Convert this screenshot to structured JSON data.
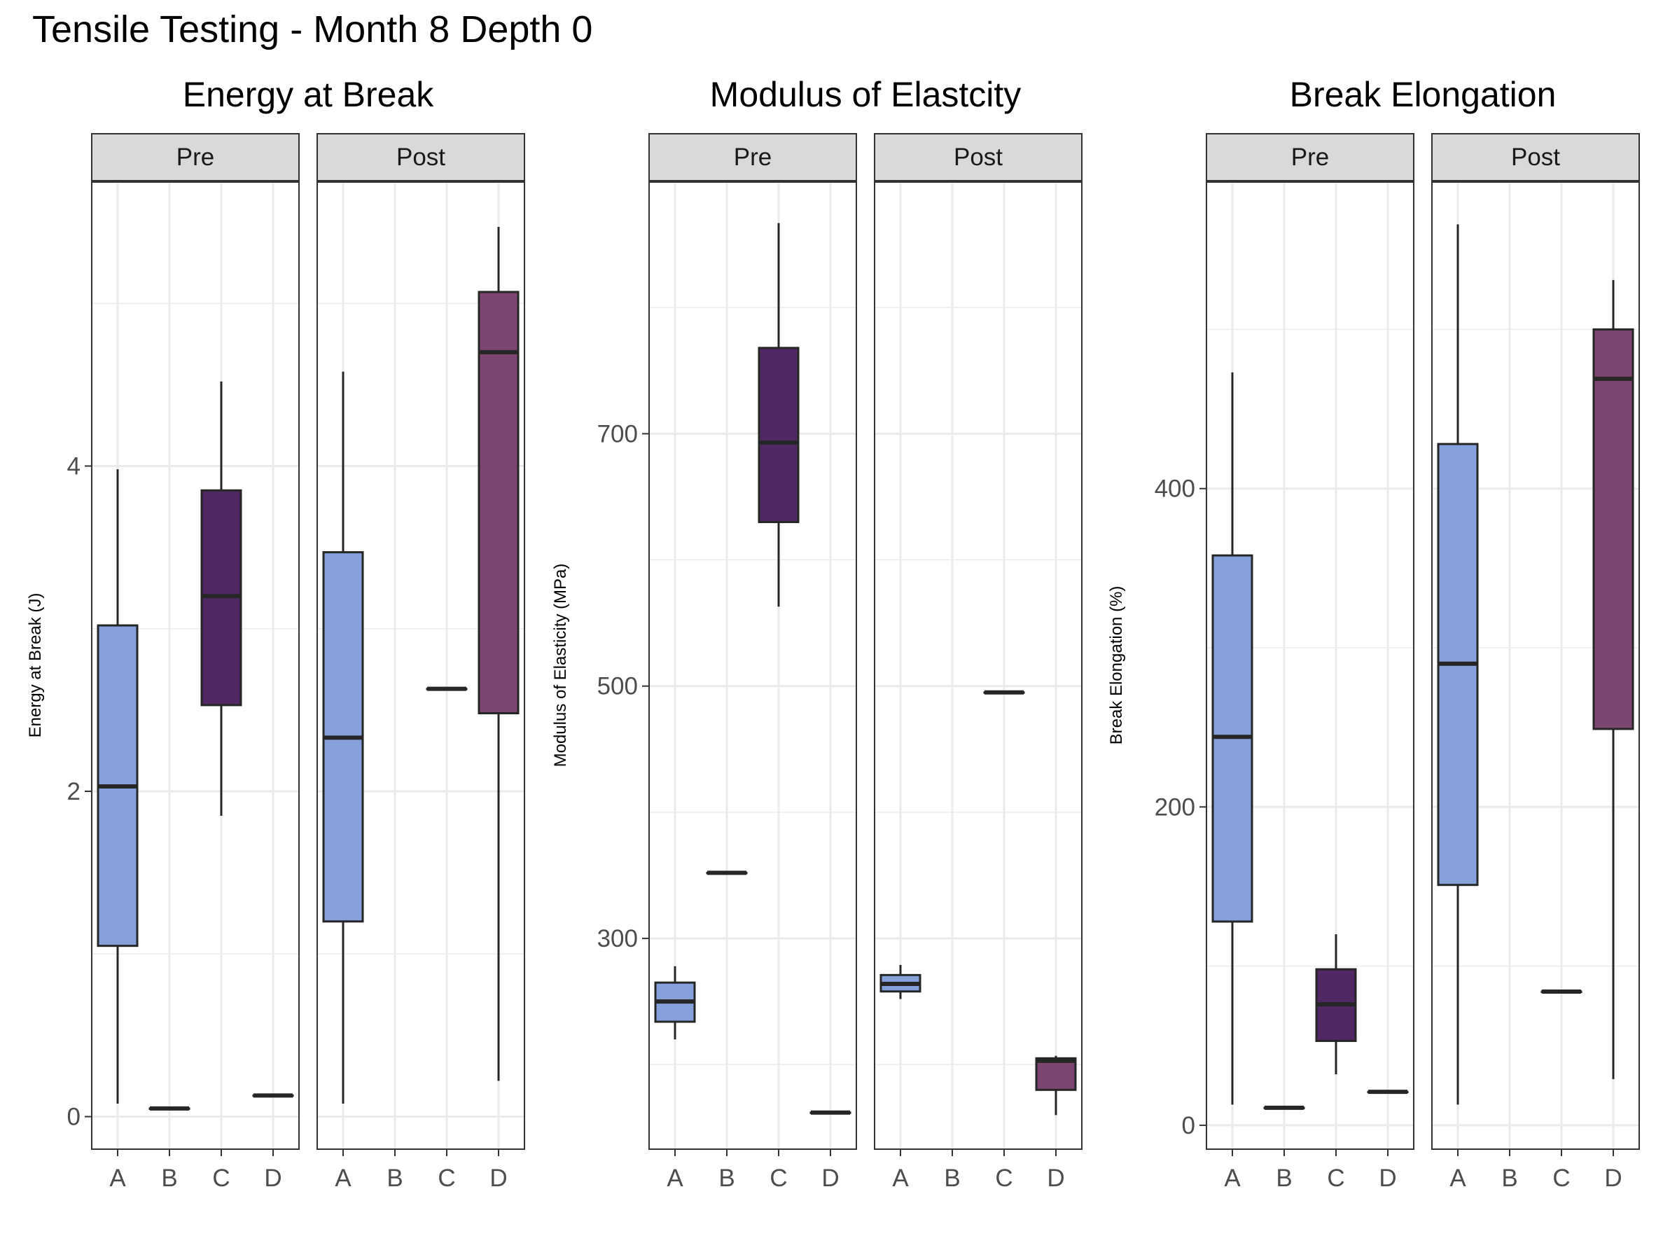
{
  "title": "Tensile Testing - Month 8 Depth 0",
  "colors": {
    "A": "#86a0dc",
    "B": "#6b85cc",
    "C": "#502864",
    "D": "#7c4670",
    "grid": "#ebebeb",
    "strip_fill": "#d9d9d9",
    "border": "#333333",
    "line": "#262626"
  },
  "chart_data": [
    {
      "type": "boxplot",
      "title": "Energy at Break",
      "ylabel": "Energy at Break (J)",
      "ylim": [
        -0.2,
        5.75
      ],
      "yticks": [
        0,
        2,
        4
      ],
      "ytick_labels": [
        "0",
        "2",
        "4"
      ],
      "categories": [
        "A",
        "B",
        "C",
        "D"
      ],
      "facets": [
        {
          "label": "Pre",
          "boxes": [
            {
              "category": "A",
              "min": 0.08,
              "q1": 1.05,
              "median": 2.03,
              "q3": 3.02,
              "max": 3.98
            },
            {
              "category": "B",
              "min": 0.05,
              "q1": 0.05,
              "median": 0.05,
              "q3": 0.05,
              "max": 0.05
            },
            {
              "category": "C",
              "min": 1.85,
              "q1": 2.53,
              "median": 3.2,
              "q3": 3.85,
              "max": 4.52
            },
            {
              "category": "D",
              "min": 0.13,
              "q1": 0.13,
              "median": 0.13,
              "q3": 0.13,
              "max": 0.13
            }
          ]
        },
        {
          "label": "Post",
          "boxes": [
            {
              "category": "A",
              "min": 0.08,
              "q1": 1.2,
              "median": 2.33,
              "q3": 3.47,
              "max": 4.58
            },
            {
              "category": "C",
              "min": 2.63,
              "q1": 2.63,
              "median": 2.63,
              "q3": 2.63,
              "max": 2.63
            },
            {
              "category": "D",
              "min": 0.22,
              "q1": 2.48,
              "median": 4.7,
              "q3": 5.07,
              "max": 5.47
            }
          ]
        }
      ]
    },
    {
      "type": "boxplot",
      "title": "Modulus of Elastcity",
      "ylabel": "Modulus of Elasticity (MPa)",
      "ylim": [
        133,
        900
      ],
      "yticks": [
        300,
        500,
        700
      ],
      "ytick_labels": [
        "300",
        "500",
        "700"
      ],
      "categories": [
        "A",
        "B",
        "C",
        "D"
      ],
      "facets": [
        {
          "label": "Pre",
          "boxes": [
            {
              "category": "A",
              "min": 220,
              "q1": 234,
              "median": 250,
              "q3": 265,
              "max": 278
            },
            {
              "category": "B",
              "min": 352,
              "q1": 352,
              "median": 352,
              "q3": 352,
              "max": 352
            },
            {
              "category": "C",
              "min": 563,
              "q1": 630,
              "median": 693,
              "q3": 768,
              "max": 867
            },
            {
              "category": "D",
              "min": 162,
              "q1": 162,
              "median": 162,
              "q3": 162,
              "max": 162
            }
          ]
        },
        {
          "label": "Post",
          "boxes": [
            {
              "category": "A",
              "min": 252,
              "q1": 258,
              "median": 264,
              "q3": 271,
              "max": 279
            },
            {
              "category": "C",
              "min": 495,
              "q1": 495,
              "median": 495,
              "q3": 495,
              "max": 495
            },
            {
              "category": "D",
              "min": 160,
              "q1": 180,
              "median": 203,
              "q3": 205,
              "max": 207
            }
          ]
        }
      ]
    },
    {
      "type": "boxplot",
      "title": "Break Elongation",
      "ylabel": "Break Elongation (%)",
      "ylim": [
        -15,
        593
      ],
      "yticks": [
        0,
        200,
        400
      ],
      "ytick_labels": [
        "0",
        "200",
        "400"
      ],
      "categories": [
        "A",
        "B",
        "C",
        "D"
      ],
      "facets": [
        {
          "label": "Pre",
          "boxes": [
            {
              "category": "A",
              "min": 13,
              "q1": 128,
              "median": 244,
              "q3": 358,
              "max": 473
            },
            {
              "category": "B",
              "min": 11,
              "q1": 11,
              "median": 11,
              "q3": 11,
              "max": 11
            },
            {
              "category": "C",
              "min": 32,
              "q1": 53,
              "median": 76,
              "q3": 98,
              "max": 120
            },
            {
              "category": "D",
              "min": 21,
              "q1": 21,
              "median": 21,
              "q3": 21,
              "max": 21
            }
          ]
        },
        {
          "label": "Post",
          "boxes": [
            {
              "category": "A",
              "min": 13,
              "q1": 151,
              "median": 290,
              "q3": 428,
              "max": 566
            },
            {
              "category": "C",
              "min": 84,
              "q1": 84,
              "median": 84,
              "q3": 84,
              "max": 84
            },
            {
              "category": "D",
              "min": 29,
              "q1": 249,
              "median": 469,
              "q3": 500,
              "max": 531
            }
          ]
        }
      ]
    }
  ]
}
